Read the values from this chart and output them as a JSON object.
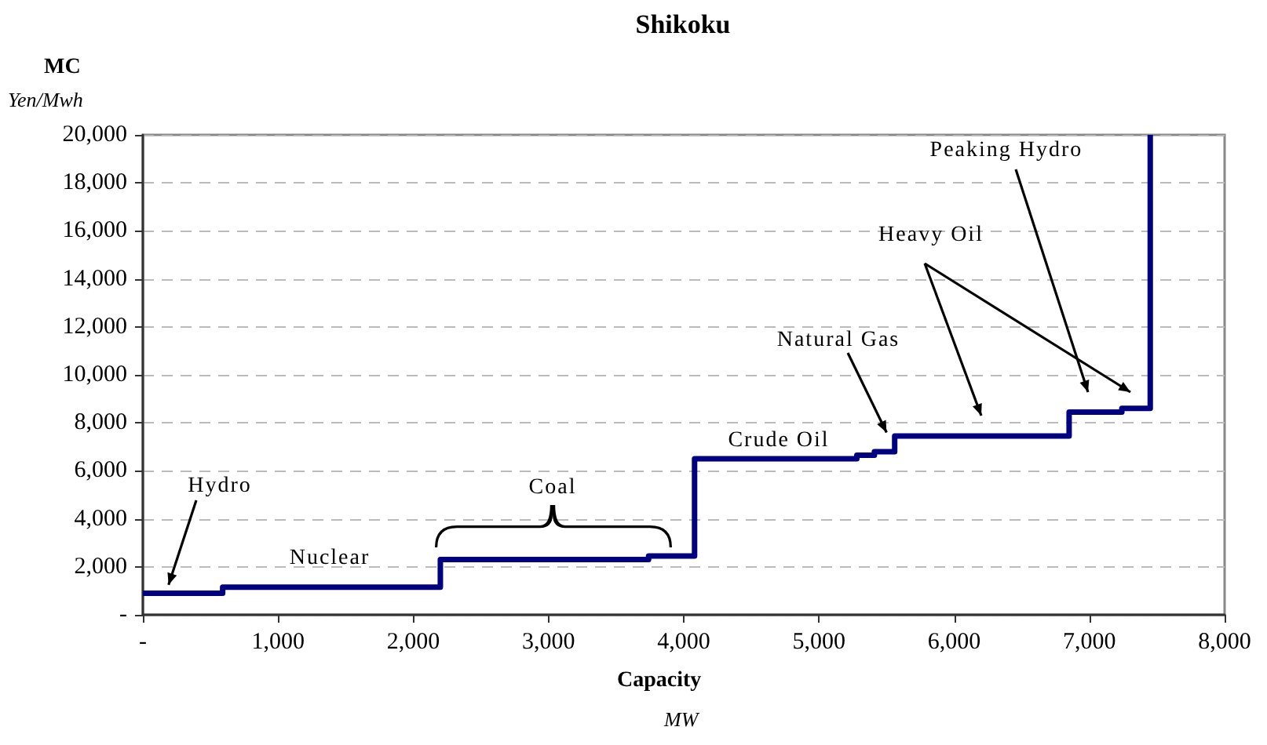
{
  "chart_data": {
    "type": "step",
    "title": "Shikoku",
    "xlabel": "Capacity\nMW",
    "ylabel": "MC\nYen/Mwh",
    "x": [
      0,
      590,
      2200,
      3740,
      4080,
      5280,
      5410,
      5560,
      6850,
      7240,
      7450
    ],
    "series": [
      {
        "color": "#000080",
        "values": [
          900,
          1150,
          2300,
          2450,
          6500,
          6650,
          6800,
          7450,
          8450,
          8600,
          20000
        ]
      }
    ],
    "xlim": [
      0,
      8000
    ],
    "xticks": [
      {
        "value": 0,
        "label": "-"
      },
      {
        "value": 1000,
        "label": "1,000"
      },
      {
        "value": 2000,
        "label": "2,000"
      },
      {
        "value": 3000,
        "label": "3,000"
      },
      {
        "value": 4000,
        "label": "4,000"
      },
      {
        "value": 5000,
        "label": "5,000"
      },
      {
        "value": 6000,
        "label": "6,000"
      },
      {
        "value": 7000,
        "label": "7,000"
      },
      {
        "value": 8000,
        "label": "8,000"
      }
    ],
    "ylim": [
      0,
      20000
    ],
    "yticks": [
      {
        "value": 0,
        "label": "-"
      },
      {
        "value": 2000,
        "label": "2,000"
      },
      {
        "value": 4000,
        "label": "4,000"
      },
      {
        "value": 6000,
        "label": "6,000"
      },
      {
        "value": 8000,
        "label": "8,000"
      },
      {
        "value": 10000,
        "label": "10,000"
      },
      {
        "value": 12000,
        "label": "12,000"
      },
      {
        "value": 14000,
        "label": "14,000"
      },
      {
        "value": 16000,
        "label": "16,000"
      },
      {
        "value": 18000,
        "label": "18,000"
      },
      {
        "value": 20000,
        "label": "20,000"
      }
    ],
    "grid": "y",
    "marker": "none",
    "line_style": "solid",
    "annotations": [
      {
        "text": "Hydro",
        "x": 190,
        "y": 1250
      },
      "Nuclear",
      "Coal",
      "Crude Oil",
      {
        "text": "Natural Gas",
        "x": 5500,
        "y": 7600
      },
      "Heavy Oil",
      "Peaking Hydro"
    ]
  }
}
